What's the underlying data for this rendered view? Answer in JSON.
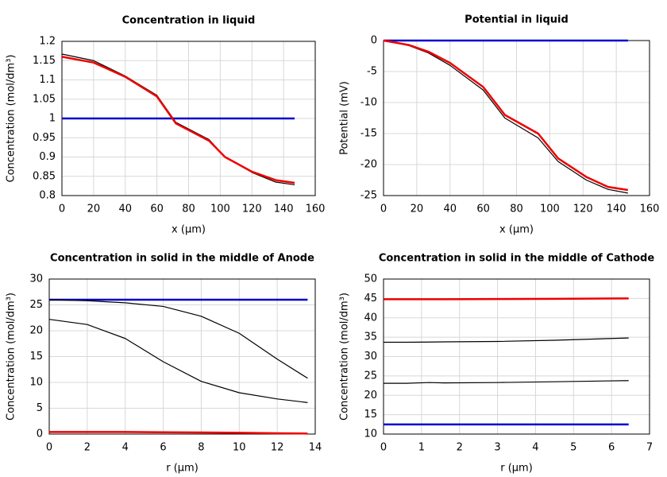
{
  "chart_data": [
    {
      "type": "line",
      "title": "Concentration in liquid",
      "x_label": "x (µm)",
      "y_label": "Concentration (mol/dm³)",
      "x": [
        0,
        20,
        40,
        60,
        72,
        93,
        103,
        120,
        135,
        147
      ],
      "series": [
        {
          "color": "#0000cc",
          "linewidth": 2.5,
          "values": [
            1,
            1,
            1,
            1,
            1,
            1,
            1,
            1,
            1,
            1
          ]
        },
        {
          "color": "#000000",
          "linewidth": 1.2,
          "values": [
            1.167,
            1.15,
            1.11,
            1.06,
            0.99,
            0.945,
            0.9,
            0.86,
            0.835,
            0.828
          ]
        },
        {
          "color": "#ee0000",
          "linewidth": 2.5,
          "values": [
            1.16,
            1.145,
            1.108,
            1.057,
            0.987,
            0.942,
            0.9,
            0.862,
            0.84,
            0.833
          ]
        }
      ],
      "xlim": [
        0,
        160
      ],
      "ylim": [
        0.8,
        1.2
      ],
      "xticks": [
        0,
        20,
        40,
        60,
        80,
        100,
        120,
        140,
        160
      ],
      "yticks": [
        0.8,
        0.85,
        0.9,
        0.95,
        1,
        1.05,
        1.1,
        1.15,
        1.2
      ],
      "grid": true
    },
    {
      "type": "line",
      "title": "Potential in liquid",
      "x_label": "x (µm)",
      "y_label": "Potential (mV)",
      "x": [
        0,
        15,
        27,
        40,
        60,
        73,
        93,
        105,
        122,
        135,
        147
      ],
      "series": [
        {
          "color": "#0000cc",
          "linewidth": 2.5,
          "values": [
            0,
            0,
            0,
            0,
            0,
            0,
            0,
            0,
            0,
            0,
            0
          ]
        },
        {
          "color": "#000000",
          "linewidth": 1.2,
          "values": [
            0,
            -0.8,
            -2,
            -4,
            -8,
            -12.5,
            -15.7,
            -19.5,
            -22.5,
            -24,
            -24.6
          ]
        },
        {
          "color": "#ee0000",
          "linewidth": 2.5,
          "values": [
            0,
            -0.7,
            -1.8,
            -3.6,
            -7.5,
            -12,
            -15,
            -19,
            -22,
            -23.6,
            -24.1
          ]
        }
      ],
      "xlim": [
        0,
        160
      ],
      "ylim": [
        -25,
        0
      ],
      "xticks": [
        0,
        20,
        40,
        60,
        80,
        100,
        120,
        140,
        160
      ],
      "yticks": [
        -25,
        -20,
        -15,
        -10,
        -5,
        0
      ],
      "grid": true
    },
    {
      "type": "line",
      "title": "Concentration in solid in the middle of Anode",
      "x_label": "r (µm)",
      "y_label": "Concentration (mol/dm³)",
      "x": [
        0,
        2,
        4,
        6,
        8,
        10,
        12,
        13.6
      ],
      "series": [
        {
          "color": "#0000cc",
          "linewidth": 2.5,
          "values": [
            26,
            26,
            26,
            26,
            26,
            26,
            26,
            26
          ]
        },
        {
          "color": "#000000",
          "linewidth": 1.2,
          "values": [
            26,
            25.8,
            25.4,
            24.7,
            22.8,
            19.5,
            14.5,
            10.8
          ]
        },
        {
          "color": "#000000",
          "linewidth": 1.2,
          "values": [
            22.2,
            21.2,
            18.5,
            14,
            10.2,
            8,
            6.8,
            6.1
          ]
        },
        {
          "color": "#ee0000",
          "linewidth": 2.5,
          "values": [
            0.4,
            0.4,
            0.4,
            0.35,
            0.3,
            0.25,
            0.15,
            0.1
          ]
        }
      ],
      "xlim": [
        0,
        14
      ],
      "ylim": [
        0,
        30
      ],
      "xticks": [
        0,
        2,
        4,
        6,
        8,
        10,
        12,
        14
      ],
      "yticks": [
        0,
        5,
        10,
        15,
        20,
        25,
        30
      ],
      "grid": true
    },
    {
      "type": "line",
      "title": "Concentration in solid in the middle of Cathode",
      "x_label": "r (µm)",
      "y_label": "Concentration (mol/dm³)",
      "x": [
        0,
        0.6,
        1.2,
        1.6,
        3,
        4.5,
        6.45
      ],
      "series": [
        {
          "color": "#ee0000",
          "linewidth": 2.5,
          "values": [
            44.8,
            44.8,
            44.8,
            44.8,
            44.85,
            44.9,
            45
          ]
        },
        {
          "color": "#000000",
          "linewidth": 1.2,
          "values": [
            33.7,
            33.7,
            33.75,
            33.8,
            33.9,
            34.2,
            34.8
          ]
        },
        {
          "color": "#000000",
          "linewidth": 1.2,
          "values": [
            23.1,
            23.1,
            23.3,
            23.2,
            23.3,
            23.5,
            23.8
          ]
        },
        {
          "color": "#0000cc",
          "linewidth": 2.5,
          "values": [
            12.5,
            12.5,
            12.5,
            12.5,
            12.5,
            12.5,
            12.5
          ]
        }
      ],
      "xlim": [
        0,
        7
      ],
      "ylim": [
        10,
        50
      ],
      "xticks": [
        0,
        1,
        2,
        3,
        4,
        5,
        6,
        7
      ],
      "yticks": [
        10,
        15,
        20,
        25,
        30,
        35,
        40,
        45,
        50
      ],
      "grid": true
    }
  ]
}
